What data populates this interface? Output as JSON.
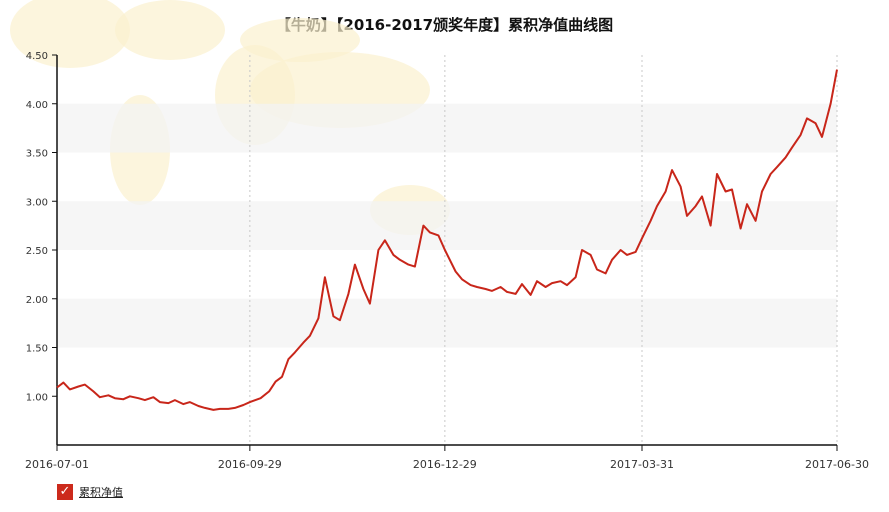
{
  "chart_data": {
    "type": "line",
    "title": "【牛奶】【2016-2017颁奖年度】累积净值曲线图",
    "xlabel": "",
    "ylabel": "",
    "ylim": [
      0.5,
      4.5
    ],
    "y_ticks": [
      "1.00",
      "1.50",
      "2.00",
      "2.50",
      "3.00",
      "3.50",
      "4.00",
      "4.50"
    ],
    "x_ticks": [
      "2016-07-01",
      "2016-09-29",
      "2016-12-29",
      "2017-03-31",
      "2017-06-30"
    ],
    "grid": true,
    "legend_position": "bottom-left",
    "series": [
      {
        "name": "累积净值",
        "color": "#c8261a",
        "x": [
          "2016-07-01",
          "2016-07-04",
          "2016-07-07",
          "2016-07-11",
          "2016-07-14",
          "2016-07-18",
          "2016-07-21",
          "2016-07-25",
          "2016-07-28",
          "2016-08-01",
          "2016-08-04",
          "2016-08-08",
          "2016-08-11",
          "2016-08-15",
          "2016-08-18",
          "2016-08-22",
          "2016-08-25",
          "2016-08-29",
          "2016-09-01",
          "2016-09-05",
          "2016-09-08",
          "2016-09-12",
          "2016-09-15",
          "2016-09-19",
          "2016-09-22",
          "2016-09-26",
          "2016-09-29",
          "2016-10-04",
          "2016-10-08",
          "2016-10-11",
          "2016-10-14",
          "2016-10-17",
          "2016-10-20",
          "2016-10-24",
          "2016-10-27",
          "2016-10-31",
          "2016-11-03",
          "2016-11-07",
          "2016-11-10",
          "2016-11-14",
          "2016-11-17",
          "2016-11-21",
          "2016-11-24",
          "2016-11-28",
          "2016-12-01",
          "2016-12-05",
          "2016-12-08",
          "2016-12-12",
          "2016-12-15",
          "2016-12-19",
          "2016-12-22",
          "2016-12-26",
          "2016-12-29",
          "2017-01-03",
          "2017-01-06",
          "2017-01-10",
          "2017-01-13",
          "2017-01-17",
          "2017-01-20",
          "2017-01-24",
          "2017-01-27",
          "2017-01-31",
          "2017-02-03",
          "2017-02-07",
          "2017-02-10",
          "2017-02-14",
          "2017-02-17",
          "2017-02-21",
          "2017-02-24",
          "2017-02-28",
          "2017-03-03",
          "2017-03-07",
          "2017-03-10",
          "2017-03-14",
          "2017-03-17",
          "2017-03-21",
          "2017-03-24",
          "2017-03-28",
          "2017-03-31",
          "2017-04-04",
          "2017-04-07",
          "2017-04-11",
          "2017-04-14",
          "2017-04-18",
          "2017-04-21",
          "2017-04-25",
          "2017-04-28",
          "2017-05-02",
          "2017-05-05",
          "2017-05-09",
          "2017-05-12",
          "2017-05-16",
          "2017-05-19",
          "2017-05-23",
          "2017-05-26",
          "2017-05-30",
          "2017-06-02",
          "2017-06-06",
          "2017-06-09",
          "2017-06-13",
          "2017-06-16",
          "2017-06-20",
          "2017-06-23",
          "2017-06-27",
          "2017-06-30"
        ],
        "y": [
          1.09,
          1.14,
          1.07,
          1.1,
          1.12,
          1.05,
          0.99,
          1.01,
          0.98,
          0.97,
          1.0,
          0.98,
          0.96,
          0.99,
          0.94,
          0.93,
          0.96,
          0.92,
          0.94,
          0.9,
          0.88,
          0.86,
          0.87,
          0.87,
          0.88,
          0.91,
          0.94,
          0.98,
          1.05,
          1.15,
          1.2,
          1.38,
          1.45,
          1.55,
          1.62,
          1.8,
          2.22,
          1.82,
          1.78,
          2.05,
          2.35,
          2.1,
          1.95,
          2.5,
          2.6,
          2.45,
          2.4,
          2.35,
          2.33,
          2.75,
          2.68,
          2.65,
          2.5,
          2.28,
          2.2,
          2.14,
          2.12,
          2.1,
          2.08,
          2.12,
          2.07,
          2.05,
          2.15,
          2.04,
          2.18,
          2.12,
          2.16,
          2.18,
          2.14,
          2.22,
          2.5,
          2.45,
          2.3,
          2.26,
          2.4,
          2.5,
          2.45,
          2.48,
          2.62,
          2.8,
          2.95,
          3.1,
          3.32,
          3.15,
          2.85,
          2.95,
          3.05,
          2.75,
          3.28,
          3.1,
          3.12,
          2.72,
          2.97,
          2.8,
          3.1,
          3.28,
          3.35,
          3.45,
          3.55,
          3.68,
          3.85,
          3.8,
          3.66,
          4.0,
          4.35
        ]
      }
    ]
  }
}
